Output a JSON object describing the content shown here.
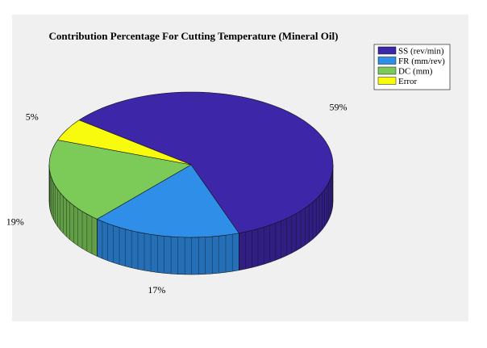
{
  "chart_data": {
    "type": "pie",
    "title": "Contribution Percentage For Cutting Temperature (Mineral Oil)",
    "slices": [
      {
        "label": "SS (rev/min)",
        "value": 59,
        "pct_label": "59%",
        "color": "#3e26a8"
      },
      {
        "label": "FR (mm/rev)",
        "value": 17,
        "pct_label": "17%",
        "color": "#2e8ee8"
      },
      {
        "label": "DC (mm)",
        "value": 19,
        "pct_label": "19%",
        "color": "#7ccb58"
      },
      {
        "label": "Error",
        "value": 5,
        "pct_label": "5%",
        "color": "#f9fb0e"
      }
    ],
    "legend_position": "top-right",
    "style": "3d-pie"
  }
}
